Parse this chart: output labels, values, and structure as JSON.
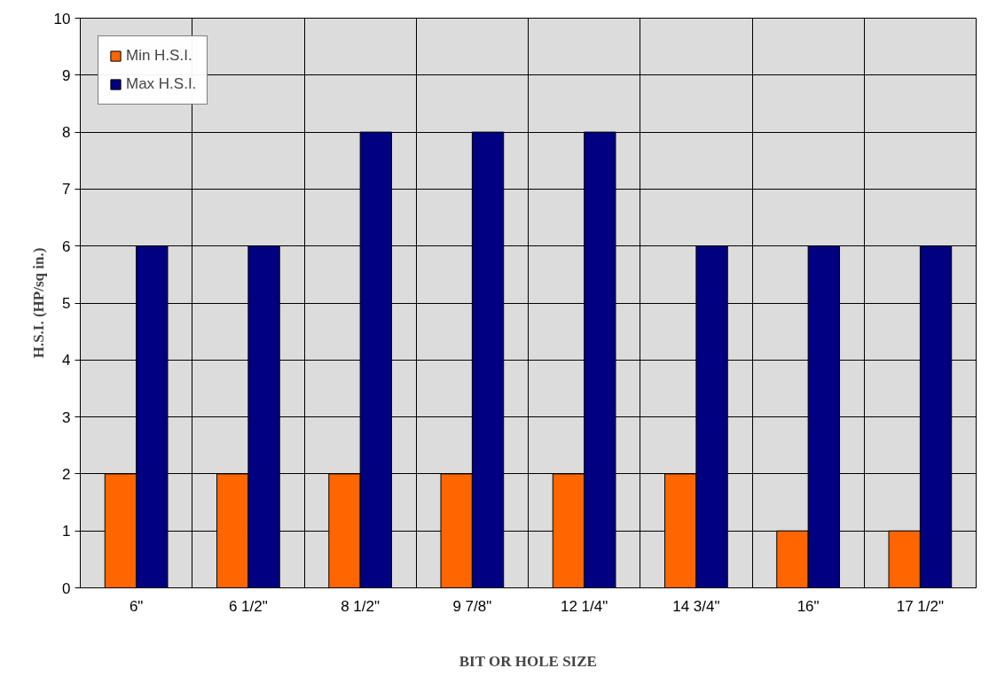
{
  "chart_data": {
    "type": "bar",
    "xlabel": "BIT OR HOLE SIZE",
    "ylabel": "H.S.I. (HP/sq in.)",
    "categories": [
      "6\"",
      "6 1/2\"",
      "8 1/2\"",
      "9 7/8\"",
      "12 1/4\"",
      "14 3/4\"",
      "16\"",
      "17 1/2\""
    ],
    "series": [
      {
        "name": "Min H.S.I.",
        "color": "#ff6600",
        "values": [
          2,
          2,
          2,
          2,
          2,
          2,
          1,
          1
        ]
      },
      {
        "name": "Max H.S.I.",
        "color": "#000080",
        "values": [
          6,
          6,
          8,
          8,
          8,
          6,
          6,
          6
        ]
      }
    ],
    "ylim": [
      0,
      10
    ],
    "yticks": [
      0,
      1,
      2,
      3,
      4,
      5,
      6,
      7,
      8,
      9,
      10
    ],
    "grid": true,
    "legend": "top left"
  }
}
